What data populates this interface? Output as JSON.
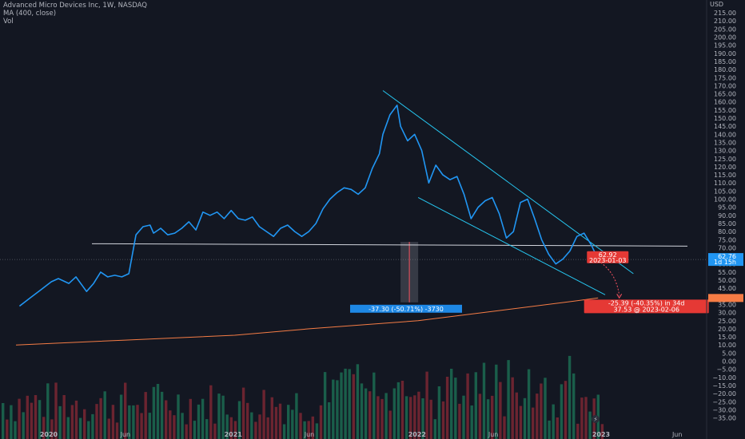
{
  "legend": {
    "title": "Advanced Micro Devices Inc, 1W, NASDAQ",
    "ma": "MA (400, close)",
    "vol": "Vol"
  },
  "axis": {
    "currency": "USD"
  },
  "colors": {
    "background": "#131722",
    "price_line": "#2196f3",
    "ma_line": "#f57c45",
    "channel": "#26c6f0",
    "support": "#d1d4dc",
    "measure_label": "#1e88e5",
    "forecast_label": "#e53935",
    "vol_up": "#1a5e4a",
    "vol_down": "#6b2430"
  },
  "labels": {
    "measure": "-37.30 (-50.71%) -3730",
    "projection_line1": "-25.39 (-40.35%) in 34d",
    "projection_line2": "37.53 @ 2023-02-06",
    "price_tag_value": "62.92",
    "price_tag_date": "2023-01-03",
    "last_price": "62.76",
    "last_price_sub": "1d 15h"
  },
  "chart_data": {
    "type": "line",
    "title": "Advanced Micro Devices Inc, 1W, NASDAQ",
    "currency": "USD",
    "x_ticks": [
      "2020",
      "Jun",
      "2021",
      "Jun",
      "2022",
      "Jun",
      "2023",
      "Jun"
    ],
    "x_tick_dates": [
      "2020-01-01",
      "2020-06-01",
      "2021-01-01",
      "2021-06-01",
      "2022-01-01",
      "2022-06-01",
      "2023-01-01",
      "2023-06-01"
    ],
    "y_range": [
      -37,
      218
    ],
    "y_ticks": [
      215,
      210,
      205,
      200,
      195,
      190,
      185,
      180,
      175,
      170,
      165,
      160,
      155,
      150,
      145,
      140,
      135,
      130,
      125,
      120,
      115,
      110,
      105,
      100,
      95,
      90,
      85,
      80,
      75,
      70,
      65,
      60,
      55,
      50,
      45,
      40,
      35,
      30,
      25,
      20,
      15,
      10,
      5,
      0,
      -5,
      -10,
      -15,
      -20,
      -25,
      -30,
      -35
    ],
    "series": [
      {
        "name": "Advanced Micro Devices Inc",
        "x": [
          "2019-11-04",
          "2019-11-25",
          "2019-12-16",
          "2020-01-06",
          "2020-01-20",
          "2020-02-10",
          "2020-02-24",
          "2020-03-16",
          "2020-03-30",
          "2020-04-13",
          "2020-04-27",
          "2020-05-11",
          "2020-05-25",
          "2020-06-08",
          "2020-06-22",
          "2020-07-06",
          "2020-07-20",
          "2020-07-27",
          "2020-08-10",
          "2020-08-24",
          "2020-09-07",
          "2020-09-21",
          "2020-10-05",
          "2020-10-19",
          "2020-11-02",
          "2020-11-16",
          "2020-11-30",
          "2020-12-14",
          "2020-12-28",
          "2021-01-11",
          "2021-01-25",
          "2021-02-08",
          "2021-02-22",
          "2021-03-08",
          "2021-03-22",
          "2021-04-05",
          "2021-04-19",
          "2021-05-03",
          "2021-05-17",
          "2021-05-31",
          "2021-06-14",
          "2021-06-28",
          "2021-07-12",
          "2021-07-26",
          "2021-08-09",
          "2021-08-23",
          "2021-09-06",
          "2021-09-20",
          "2021-10-04",
          "2021-10-18",
          "2021-10-25",
          "2021-11-08",
          "2021-11-22",
          "2021-11-29",
          "2021-12-13",
          "2021-12-27",
          "2022-01-10",
          "2022-01-24",
          "2022-02-07",
          "2022-02-21",
          "2022-03-07",
          "2022-03-21",
          "2022-04-04",
          "2022-04-18",
          "2022-05-02",
          "2022-05-16",
          "2022-05-30",
          "2022-06-13",
          "2022-06-27",
          "2022-07-11",
          "2022-07-25",
          "2022-08-08",
          "2022-08-22",
          "2022-09-05",
          "2022-09-19",
          "2022-10-03",
          "2022-10-17",
          "2022-10-31",
          "2022-11-14",
          "2022-11-28",
          "2022-12-12",
          "2022-12-26"
        ],
        "values": [
          34,
          39,
          44,
          49,
          51,
          48,
          52,
          43,
          48,
          55,
          52,
          53,
          52,
          54,
          78,
          83,
          84,
          79,
          82,
          78,
          79,
          82,
          86,
          81,
          92,
          90,
          92,
          88,
          93,
          88,
          87,
          89,
          83,
          80,
          77,
          82,
          84,
          80,
          77,
          80,
          85,
          94,
          100,
          104,
          107,
          106,
          103,
          107,
          119,
          128,
          140,
          152,
          158,
          145,
          136,
          140,
          130,
          110,
          121,
          115,
          112,
          114,
          103,
          88,
          95,
          99,
          101,
          91,
          76,
          80,
          98,
          100,
          88,
          75,
          66,
          60,
          63,
          68,
          77,
          79,
          72,
          63
        ]
      },
      {
        "name": "MA (400, close)",
        "x": [
          "2019-10-28",
          "2020-06-01",
          "2021-01-04",
          "2021-06-01",
          "2022-01-03",
          "2022-06-06",
          "2022-11-07",
          "2022-12-26"
        ],
        "values": [
          10,
          13,
          16,
          20,
          25,
          31,
          37,
          39
        ]
      }
    ],
    "annotations": [
      {
        "type": "channel_upper",
        "from": [
          "2021-10-25",
          167
        ],
        "to": [
          "2023-03-06",
          54
        ]
      },
      {
        "type": "channel_lower",
        "from": [
          "2022-01-03",
          101
        ],
        "to": [
          "2023-01-09",
          41
        ]
      },
      {
        "type": "horizontal_level",
        "value": 72.5
      },
      {
        "type": "measure",
        "from_date": "2021-11-29",
        "to_date": "2022-01-03",
        "top": 73.6,
        "bottom": 36.3
      },
      {
        "type": "projection",
        "from": [
          "2023-01-03",
          62.92
        ],
        "to": [
          "2023-02-06",
          37.53
        ]
      }
    ],
    "grid": false
  }
}
